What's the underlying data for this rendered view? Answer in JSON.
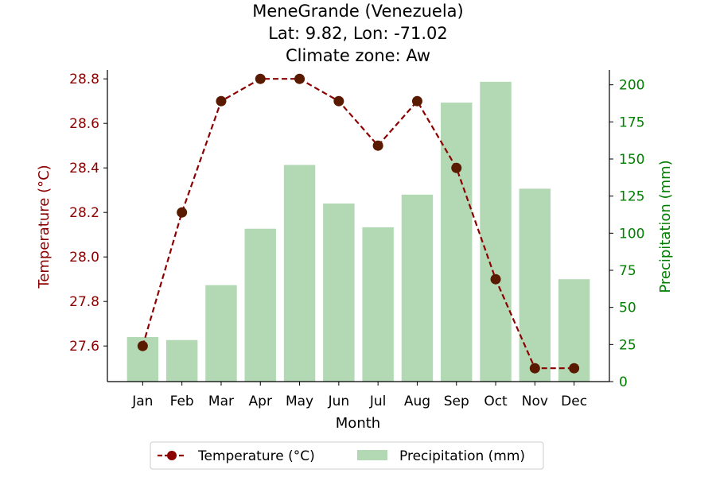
{
  "chart_data": {
    "type": "bar+line",
    "title_lines": [
      "MeneGrande (Venezuela)",
      "Lat: 9.82, Lon: -71.02",
      "Climate zone: Aw"
    ],
    "categories": [
      "Jan",
      "Feb",
      "Mar",
      "Apr",
      "May",
      "Jun",
      "Jul",
      "Aug",
      "Sep",
      "Oct",
      "Nov",
      "Dec"
    ],
    "xlabel": "Month",
    "temperature": {
      "name": "Temperature (°C)",
      "axis_label": "Temperature (°C)",
      "values": [
        27.6,
        28.2,
        28.7,
        28.8,
        28.8,
        28.7,
        28.5,
        28.7,
        28.4,
        27.9,
        27.5,
        27.5
      ],
      "ylim": [
        27.44,
        28.84
      ],
      "ticks": [
        27.6,
        27.8,
        28.0,
        28.2,
        28.4,
        28.6,
        28.8
      ],
      "tick_labels": [
        "27.6",
        "27.8",
        "28.0",
        "28.2",
        "28.4",
        "28.6",
        "28.8"
      ],
      "color": "#8b0000",
      "marker_color": "#5a1a00",
      "axis_color": "#8b0000"
    },
    "precipitation": {
      "name": "Precipitation (mm)",
      "axis_label": "Precipitation (mm)",
      "values": [
        30,
        28,
        65,
        103,
        146,
        120,
        104,
        126,
        188,
        202,
        130,
        69
      ],
      "ylim": [
        0,
        210
      ],
      "ticks": [
        0,
        25,
        50,
        75,
        100,
        125,
        150,
        175,
        200
      ],
      "tick_labels": [
        "0",
        "25",
        "50",
        "75",
        "100",
        "125",
        "150",
        "175",
        "200"
      ],
      "color": "#b2d9b4",
      "axis_color": "#008000"
    },
    "legend": {
      "placement": "bottom-center",
      "entries": [
        "Temperature (°C)",
        "Precipitation (mm)"
      ]
    },
    "grid": false
  }
}
